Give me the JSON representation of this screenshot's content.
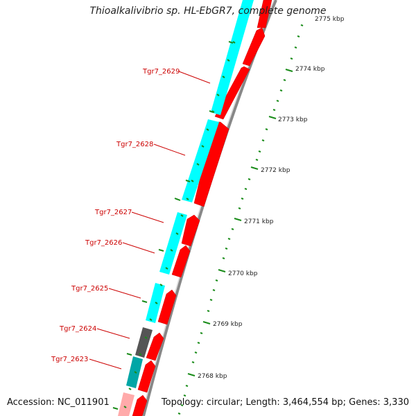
{
  "title": "Thioalkalivibrio sp. HL-EbGR7, complete genome",
  "footer": {
    "accession": "Accession: NC_011901",
    "summary": "Topology: circular; Length: 3,464,554 bp; Genes: 3,330"
  },
  "scale_labels": [
    "2768 kbp",
    "2769 kbp",
    "2770 kbp",
    "2771 kbp",
    "2772 kbp",
    "2773 kbp",
    "2774 kbp",
    "2775 kbp"
  ],
  "gene_labels": [
    "Tgr7_2629",
    "Tgr7_2628",
    "Tgr7_2627",
    "Tgr7_2626",
    "Tgr7_2625",
    "Tgr7_2624",
    "Tgr7_2623"
  ],
  "colors": {
    "cds": "#ff0000",
    "outer_track": "#00ffff",
    "outer_track_dark": "#00a6a6",
    "outer_track_gray": "#555555",
    "outer_track_pink": "#ffaaaa",
    "backbone": "#888888",
    "tick_marks": "#1a8c1a",
    "label_text": "#cc0000"
  }
}
